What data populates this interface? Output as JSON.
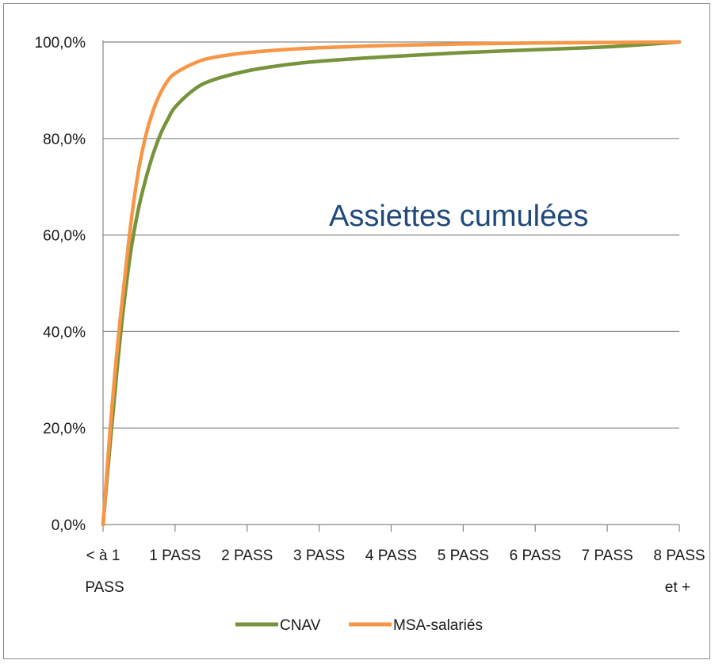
{
  "chart_data": {
    "type": "line",
    "title": "",
    "annotation": "Assiettes cumulées",
    "xlabel": "",
    "ylabel": "",
    "x_ticks": [
      [
        "< à 1",
        "PASS"
      ],
      [
        "1 PASS"
      ],
      [
        "2 PASS"
      ],
      [
        "3 PASS"
      ],
      [
        "4 PASS"
      ],
      [
        "5 PASS"
      ],
      [
        "6 PASS"
      ],
      [
        "7 PASS"
      ],
      [
        "8 PASS",
        "et +"
      ]
    ],
    "x_range": [
      0,
      8
    ],
    "y_ticks": [
      "0,0%",
      "20,0%",
      "40,0%",
      "60,0%",
      "80,0%",
      "100,0%"
    ],
    "ylim": [
      0,
      100
    ],
    "grid": "horizontal",
    "legend_position": "bottom",
    "series": [
      {
        "name": "CNAV",
        "color": "#77933c",
        "points": [
          [
            0,
            0
          ],
          [
            0.1,
            17
          ],
          [
            0.2,
            33
          ],
          [
            0.3,
            47
          ],
          [
            0.4,
            58
          ],
          [
            0.5,
            66
          ],
          [
            0.6,
            72
          ],
          [
            0.7,
            77
          ],
          [
            0.8,
            81
          ],
          [
            0.9,
            84
          ],
          [
            1.0,
            86.5
          ],
          [
            1.25,
            90
          ],
          [
            1.5,
            92
          ],
          [
            2.0,
            94
          ],
          [
            2.5,
            95.2
          ],
          [
            3.0,
            96
          ],
          [
            4.0,
            97
          ],
          [
            5.0,
            97.8
          ],
          [
            6.0,
            98.4
          ],
          [
            7.0,
            99
          ],
          [
            8.0,
            100
          ]
        ]
      },
      {
        "name": "MSA-salariés",
        "color": "#f79646",
        "points": [
          [
            0,
            0
          ],
          [
            0.1,
            20
          ],
          [
            0.2,
            37
          ],
          [
            0.3,
            51
          ],
          [
            0.4,
            64
          ],
          [
            0.5,
            74
          ],
          [
            0.6,
            81
          ],
          [
            0.7,
            86
          ],
          [
            0.8,
            89.5
          ],
          [
            0.9,
            92
          ],
          [
            1.0,
            93.5
          ],
          [
            1.25,
            95.5
          ],
          [
            1.5,
            96.7
          ],
          [
            2.0,
            97.8
          ],
          [
            2.5,
            98.4
          ],
          [
            3.0,
            98.8
          ],
          [
            4.0,
            99.3
          ],
          [
            5.0,
            99.6
          ],
          [
            6.0,
            99.8
          ],
          [
            7.0,
            99.9
          ],
          [
            8.0,
            100
          ]
        ]
      }
    ],
    "colors": {
      "annotation": "#1f497d",
      "grid": "#868686",
      "axis": "#868686"
    }
  }
}
